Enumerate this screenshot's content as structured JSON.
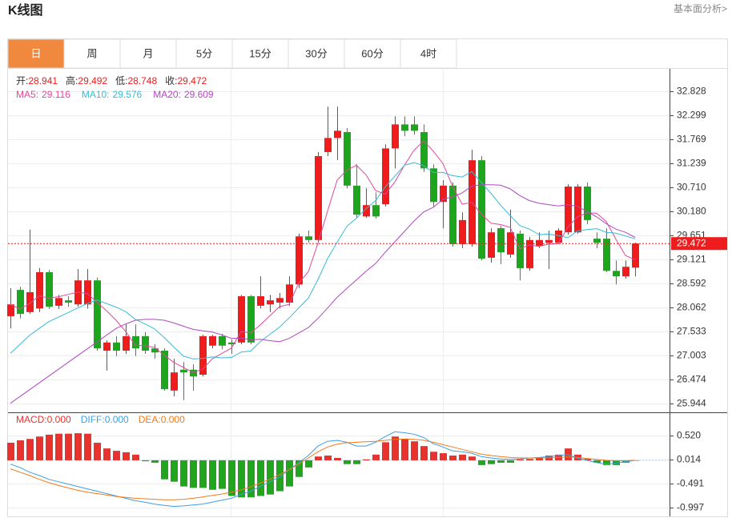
{
  "header": {
    "title": "K线图",
    "link": "基本面分析>"
  },
  "tabs": [
    "日",
    "周",
    "月",
    "5分",
    "15分",
    "30分",
    "60分",
    "4时"
  ],
  "active_tab": 0,
  "chart_data": [
    {
      "type": "candlestick",
      "ohlc_labels": [
        "开:",
        "高:",
        "低:",
        "收:"
      ],
      "up_color": "#ee1c1c",
      "down_color": "#1ea51e",
      "price_line_color": "#ee1c1c",
      "open": [
        27.87,
        28.45,
        27.96,
        28.04,
        28.84,
        28.1,
        28.22,
        28.13,
        28.13,
        28.66,
        27.11,
        27.29,
        27.11,
        27.43,
        27.43,
        27.16,
        27.11,
        26.23,
        26.69,
        26.69,
        26.58,
        27.22,
        27.43,
        27.29,
        27.29,
        28.31,
        28.1,
        28.13,
        28.17,
        28.17,
        28.57,
        29.63,
        29.55,
        31.49,
        31.8,
        31.93,
        30.75,
        30.07,
        30.32,
        30.34,
        31.57,
        32.1,
        32.1,
        31.93,
        31.13,
        30.39,
        30.75,
        29.46,
        29.46,
        31.31,
        29.16,
        29.81,
        29.23,
        29.69,
        28.93,
        29.42,
        29.49,
        29.49,
        29.72,
        29.72,
        30.73,
        29.58,
        29.58,
        28.87,
        28.75,
        28.941
      ],
      "high": [
        28.49,
        28.52,
        29.78,
        28.93,
        28.89,
        28.34,
        28.31,
        28.91,
        28.91,
        28.72,
        27.34,
        27.43,
        27.69,
        27.69,
        27.52,
        27.25,
        27.16,
        26.93,
        26.86,
        26.81,
        27.46,
        27.46,
        27.48,
        27.36,
        28.34,
        28.34,
        28.75,
        28.34,
        28.38,
        28.75,
        29.69,
        29.76,
        31.49,
        32.49,
        32.49,
        32.02,
        31.22,
        30.69,
        30.6,
        31.66,
        32.28,
        32.28,
        32.28,
        32.1,
        31.22,
        30.87,
        30.82,
        30.16,
        31.54,
        31.4,
        29.81,
        29.86,
        30.22,
        29.76,
        29.62,
        29.72,
        29.76,
        29.81,
        30.78,
        30.78,
        30.82,
        29.72,
        29.81,
        29.1,
        29.1,
        29.492
      ],
      "low": [
        27.6,
        27.82,
        27.92,
        27.96,
        28.03,
        28.03,
        28.08,
        28.08,
        28.04,
        27.11,
        26.67,
        26.99,
        27.04,
        26.99,
        27.04,
        26.93,
        26.23,
        26.1,
        26.02,
        26.23,
        26.54,
        27.16,
        27.14,
        27.04,
        27.25,
        27.25,
        28.04,
        27.96,
        28.04,
        28.1,
        28.49,
        29.49,
        29.49,
        31.4,
        31.31,
        30.69,
        30.04,
        30.04,
        30.02,
        30.29,
        31.13,
        31.84,
        31.87,
        31.05,
        30.29,
        29.81,
        29.4,
        29.37,
        29.4,
        29.1,
        29.05,
        29.02,
        29.16,
        28.66,
        28.87,
        29.37,
        28.91,
        29.46,
        29.67,
        29.69,
        29.9,
        29.37,
        28.84,
        28.57,
        28.7,
        28.748
      ],
      "close": [
        28.13,
        27.92,
        28.4,
        28.84,
        28.08,
        28.27,
        28.17,
        28.66,
        28.66,
        27.16,
        27.29,
        27.11,
        27.43,
        27.16,
        27.11,
        27.07,
        26.26,
        26.63,
        26.63,
        26.54,
        27.43,
        27.43,
        27.22,
        27.25,
        28.31,
        27.29,
        28.31,
        28.22,
        28.27,
        28.57,
        29.63,
        29.55,
        31.4,
        31.8,
        31.96,
        30.75,
        30.11,
        30.32,
        30.07,
        31.57,
        32.1,
        31.96,
        31.96,
        31.13,
        30.39,
        30.75,
        29.46,
        29.99,
        31.31,
        29.14,
        29.72,
        29.28,
        29.72,
        28.93,
        29.55,
        29.55,
        29.55,
        29.76,
        30.73,
        30.73,
        29.99,
        29.49,
        28.87,
        28.75,
        28.96,
        29.472
      ],
      "series": [
        {
          "name": "MA5:",
          "color": "#e0489a",
          "values": [
            28.13,
            28.03,
            28.15,
            28.32,
            28.27,
            28.3,
            28.35,
            28.4,
            28.37,
            28.18,
            27.99,
            27.78,
            27.53,
            27.23,
            27.22,
            27.18,
            27.01,
            26.85,
            26.74,
            26.63,
            26.7,
            26.93,
            27.05,
            27.17,
            27.53,
            27.5,
            27.68,
            27.88,
            28.08,
            28.13,
            28.6,
            28.85,
            29.48,
            30.19,
            30.87,
            31.09,
            31.2,
            30.99,
            30.64,
            30.56,
            30.83,
            31.2,
            31.53,
            31.74,
            31.51,
            31.24,
            30.74,
            30.34,
            30.38,
            30.13,
            29.92,
            29.89,
            29.83,
            29.36,
            29.44,
            29.41,
            29.46,
            29.47,
            29.83,
            30.06,
            30.15,
            30.14,
            29.96,
            29.57,
            29.21,
            29.116
          ]
        },
        {
          "name": "MA10:",
          "color": "#36bcd8",
          "values": [
            27.05,
            27.25,
            27.45,
            27.6,
            27.75,
            27.85,
            27.95,
            28.05,
            28.15,
            28.23,
            28.15,
            28.07,
            27.97,
            27.8,
            27.7,
            27.59,
            27.4,
            27.19,
            26.99,
            26.93,
            26.94,
            26.97,
            26.95,
            26.96,
            27.08,
            27.1,
            27.31,
            27.47,
            27.63,
            27.83,
            28.05,
            28.27,
            28.68,
            29.14,
            29.5,
            29.85,
            30.03,
            30.24,
            30.42,
            30.72,
            30.96,
            31.2,
            31.26,
            31.19,
            31.04,
            31.04,
            30.97,
            30.94,
            31.06,
            30.82,
            30.58,
            30.32,
            30.09,
            29.87,
            29.79,
            29.67,
            29.68,
            29.65,
            29.6,
            29.75,
            29.78,
            29.8,
            29.72,
            29.7,
            29.64,
            29.576
          ]
        },
        {
          "name": "MA20:",
          "color": "#b048c0",
          "values": [
            25.95,
            26.1,
            26.25,
            26.4,
            26.55,
            26.7,
            26.85,
            27.0,
            27.15,
            27.3,
            27.45,
            27.6,
            27.7,
            27.78,
            27.8,
            27.8,
            27.78,
            27.72,
            27.65,
            27.58,
            27.55,
            27.52,
            27.46,
            27.38,
            27.39,
            27.35,
            27.36,
            27.33,
            27.31,
            27.38,
            27.5,
            27.62,
            27.82,
            28.05,
            28.29,
            28.48,
            28.67,
            28.86,
            29.03,
            29.28,
            29.51,
            29.74,
            29.97,
            30.17,
            30.27,
            30.45,
            30.5,
            30.59,
            30.74,
            30.77,
            30.77,
            30.76,
            30.68,
            30.53,
            30.42,
            30.36,
            30.33,
            30.3,
            30.33,
            30.29,
            30.18,
            30.06,
            29.91,
            29.79,
            29.72,
            29.609
          ]
        }
      ],
      "ylim": [
        25.75,
        33.29
      ],
      "yticks": [
        32.828,
        32.299,
        31.769,
        31.239,
        {
          "value": 30.71,
          "label": "30.710"
        },
        {
          "value": 30.18,
          "label": "30.180"
        },
        29.651,
        29.121,
        28.592,
        28.062,
        27.533,
        27.003,
        26.474,
        25.944
      ],
      "grid": true
    },
    {
      "type": "macd",
      "ylim": [
        -1.18,
        1.01
      ],
      "yticks": [
        {
          "value": 0.52,
          "label": "0.520"
        },
        0.014,
        -0.491,
        -0.997
      ],
      "grid": true,
      "series": [
        {
          "name": "MACD:",
          "kind": "bar",
          "color": "#e8322e",
          "down_color": "#23a41f",
          "legend_value": {
            "value": 0,
            "label": "0.000"
          },
          "values": [
            0.37,
            0.42,
            0.45,
            0.5,
            0.54,
            0.56,
            0.56,
            0.57,
            0.56,
            0.37,
            0.25,
            0.2,
            0.17,
            0.12,
            -0.02,
            -0.05,
            -0.4,
            -0.45,
            -0.55,
            -0.58,
            -0.58,
            -0.62,
            -0.6,
            -0.75,
            -0.78,
            -0.78,
            -0.75,
            -0.72,
            -0.65,
            -0.55,
            -0.35,
            -0.15,
            0.08,
            0.1,
            0.05,
            -0.08,
            -0.08,
            0.02,
            0.12,
            0.38,
            0.5,
            0.45,
            0.4,
            0.3,
            0.18,
            0.15,
            0.1,
            0.12,
            0.08,
            -0.1,
            -0.08,
            -0.05,
            -0.05,
            0.02,
            0.03,
            0.05,
            0.1,
            0.12,
            0.25,
            0.12,
            0.03,
            -0.05,
            -0.1,
            -0.1,
            -0.05,
            0
          ]
        },
        {
          "name": "DIFF:",
          "kind": "line",
          "color": "#3f9fe0",
          "legend_value": {
            "value": 0,
            "label": "0.000"
          },
          "values": [
            -0.08,
            -0.15,
            -0.25,
            -0.32,
            -0.4,
            -0.45,
            -0.5,
            -0.55,
            -0.6,
            -0.65,
            -0.7,
            -0.75,
            -0.8,
            -0.85,
            -0.88,
            -0.92,
            -0.95,
            -0.97,
            -0.96,
            -0.94,
            -0.92,
            -0.88,
            -0.84,
            -0.8,
            -0.72,
            -0.65,
            -0.55,
            -0.45,
            -0.35,
            -0.2,
            -0.05,
            0.1,
            0.3,
            0.4,
            0.42,
            0.38,
            0.3,
            0.3,
            0.38,
            0.5,
            0.6,
            0.58,
            0.55,
            0.48,
            0.35,
            0.28,
            0.2,
            0.18,
            0.15,
            0.08,
            0.05,
            0.03,
            0.02,
            0.03,
            0.05,
            0.06,
            0.08,
            0.1,
            0.12,
            0.05,
            0,
            -0.05,
            -0.08,
            -0.06,
            -0.03,
            0
          ]
        },
        {
          "name": "DEA:",
          "kind": "line",
          "color": "#f07a1e",
          "legend_value": {
            "value": 0,
            "label": "0.000"
          },
          "values": [
            -0.18,
            -0.25,
            -0.32,
            -0.4,
            -0.47,
            -0.53,
            -0.58,
            -0.63,
            -0.67,
            -0.7,
            -0.73,
            -0.76,
            -0.78,
            -0.8,
            -0.81,
            -0.82,
            -0.83,
            -0.83,
            -0.82,
            -0.8,
            -0.77,
            -0.74,
            -0.71,
            -0.67,
            -0.62,
            -0.56,
            -0.48,
            -0.4,
            -0.3,
            -0.2,
            -0.08,
            0.05,
            0.18,
            0.28,
            0.34,
            0.37,
            0.38,
            0.39,
            0.4,
            0.42,
            0.44,
            0.45,
            0.44,
            0.42,
            0.38,
            0.33,
            0.28,
            0.23,
            0.18,
            0.13,
            0.1,
            0.08,
            0.06,
            0.05,
            0.05,
            0.05,
            0.05,
            0.06,
            0.07,
            0.06,
            0.04,
            0.02,
            0,
            -0.01,
            -0.01,
            0
          ]
        }
      ]
    }
  ]
}
